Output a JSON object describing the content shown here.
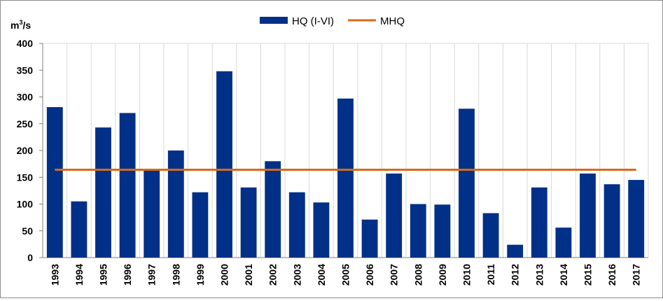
{
  "chart_data": {
    "type": "bar",
    "ylabel": "m³/s",
    "ylabel_base": "m",
    "ylabel_sup": "3",
    "ylabel_rest": "/s",
    "categories": [
      "1993",
      "1994",
      "1995",
      "1996",
      "1997",
      "1998",
      "1999",
      "2000",
      "2001",
      "2002",
      "2003",
      "2004",
      "2005",
      "2006",
      "2007",
      "2008",
      "2009",
      "2010",
      "2011",
      "2012",
      "2013",
      "2014",
      "2015",
      "2016",
      "2017"
    ],
    "series": [
      {
        "name": "HQ (I-VI)",
        "type": "bar",
        "color": "#003087",
        "values": [
          281,
          105,
          243,
          270,
          163,
          200,
          122,
          348,
          131,
          180,
          122,
          103,
          297,
          71,
          157,
          100,
          99,
          278,
          83,
          24,
          131,
          56,
          157,
          137,
          145
        ]
      },
      {
        "name": "MHQ",
        "type": "line",
        "color": "#d86a1b",
        "value": 164
      }
    ],
    "ylim": [
      0,
      400
    ],
    "yticks": [
      0,
      50,
      100,
      150,
      200,
      250,
      300,
      350,
      400
    ],
    "grid": "vertical category separators",
    "legend": "top-center"
  }
}
